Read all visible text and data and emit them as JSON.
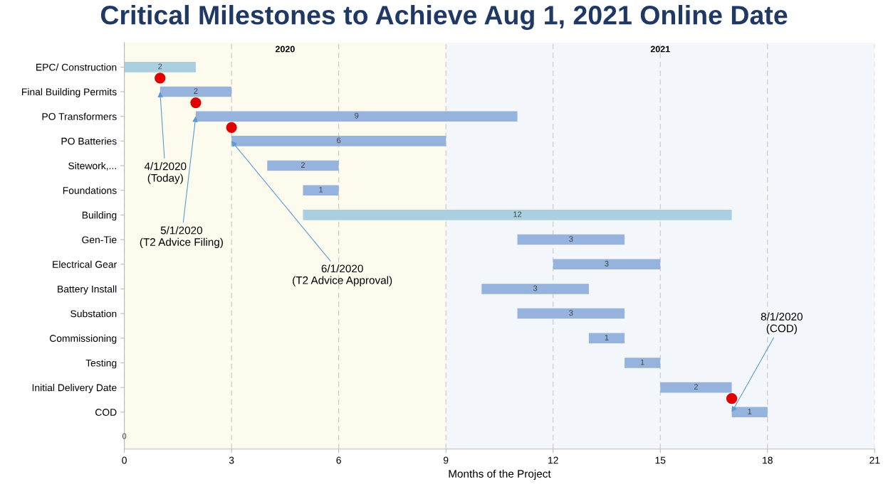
{
  "chart_data": {
    "type": "bar",
    "orientation": "horizontal",
    "title": "Critical Milestones to Achieve Aug 1, 2021 Online Date",
    "xlabel": "Months of the Project",
    "categories": [
      "EPC/ Construction",
      "Final Building Permits",
      "PO Transformers",
      "PO Batteries",
      "Sitework,...",
      "Foundations",
      "Building",
      "Gen-Tie",
      "Electrical Gear",
      "Battery Install",
      "Substation",
      "Commissioning",
      "Testing",
      "Initial Delivery Date",
      "COD"
    ],
    "base": [
      0,
      1,
      2,
      3,
      4,
      5,
      5,
      11,
      12,
      10,
      11,
      13,
      14,
      15,
      17
    ],
    "values": [
      2,
      2,
      9,
      6,
      2,
      1,
      12,
      3,
      3,
      3,
      3,
      1,
      1,
      2,
      1
    ],
    "colors": [
      "#a9cfe0",
      "#95b3dd",
      "#95b3dd",
      "#95b3dd",
      "#95b3dd",
      "#95b3dd",
      "#a9cfe0",
      "#95b3dd",
      "#95b3dd",
      "#95b3dd",
      "#95b3dd",
      "#95b3dd",
      "#95b3dd",
      "#95b3dd",
      "#95b3dd"
    ],
    "data_labels": true,
    "xlim": [
      0,
      21
    ],
    "xticks": [
      0,
      3,
      6,
      9,
      12,
      15,
      18,
      21
    ],
    "grid": "x",
    "bands": [
      {
        "axis": "x",
        "from": 0,
        "to": 9,
        "label": "2020",
        "color": "#fdfbee"
      },
      {
        "axis": "x",
        "from": 9,
        "to": 21,
        "label": "2021",
        "color": "#f3f6fa"
      }
    ],
    "annotations": [
      {
        "text": "4/1/2020\n(Today)",
        "x": 1,
        "y": "Final Building Permits"
      },
      {
        "text": "5/1/2020\n(T2 Advice Filing)",
        "x": 2,
        "y": "PO Transformers"
      },
      {
        "text": "6/1/2020\n(T2 Advice Approval)",
        "x": 3,
        "y": "PO Batteries"
      },
      {
        "text": "8/1/2020\n(COD)",
        "x": 17,
        "y": "COD"
      },
      {
        "text": "0",
        "x": 0
      }
    ]
  }
}
